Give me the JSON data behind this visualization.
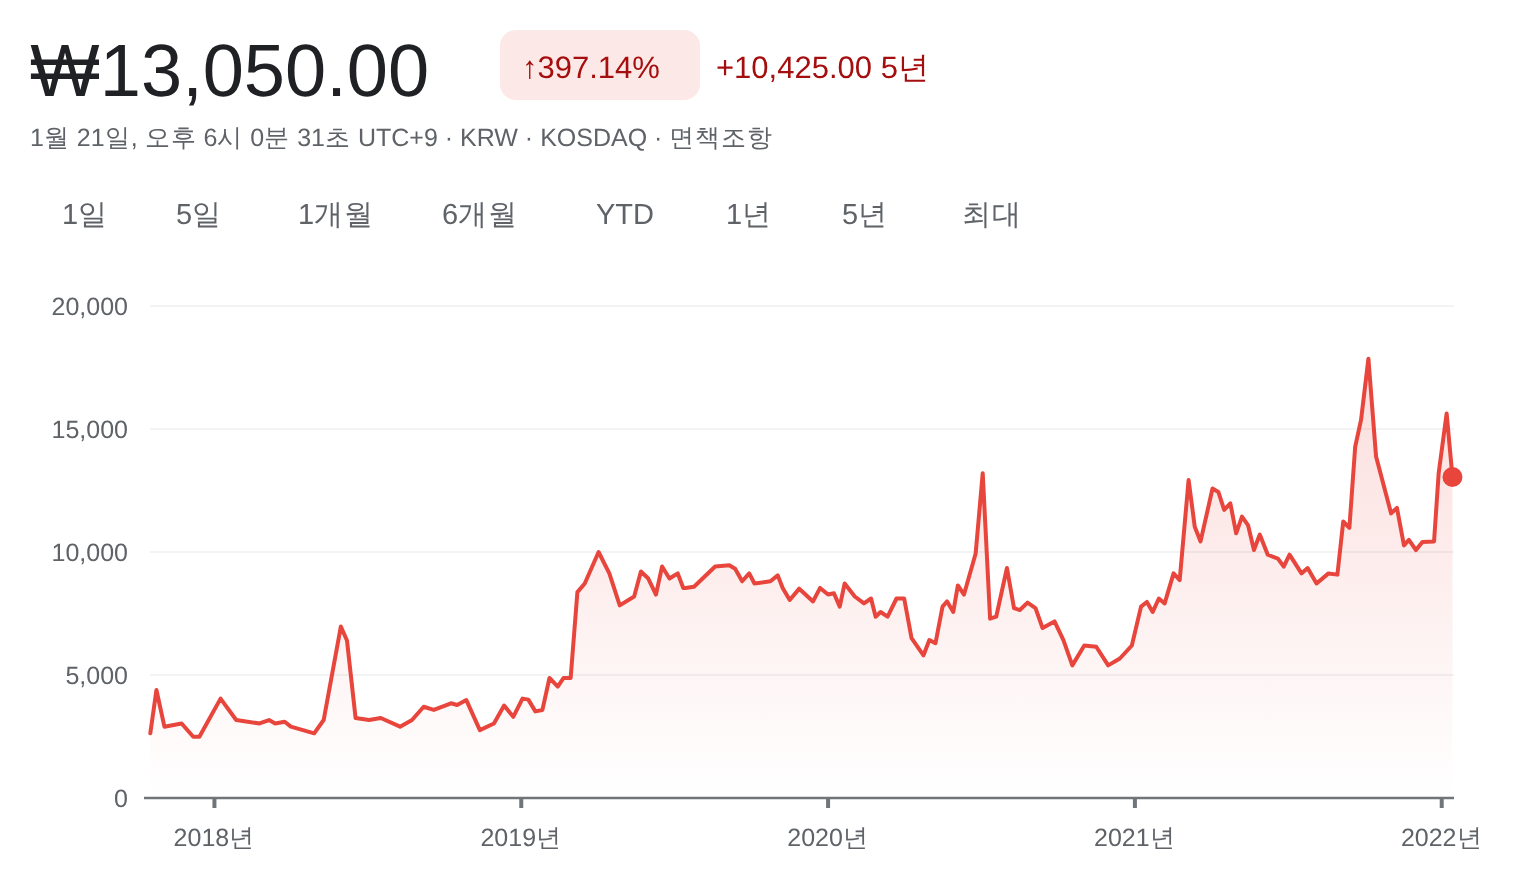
{
  "chart_data": {
    "type": "area",
    "title": "₩13,050.00",
    "subtitle": "1월 21일, 오후 6시 0분 31초 UTC+9 · KRW · KOSDAQ · 면책조항",
    "annotations": [
      "↑397.14%",
      "+10,425.00 5년",
      "1일",
      "5일",
      "1개월",
      "6개월",
      "YTD",
      "1년",
      "5년",
      "최대"
    ],
    "xlim": [
      2017.79,
      2022.04
    ],
    "ylim": [
      0,
      20000
    ],
    "xticks": [
      {
        "value": 2018,
        "label": "2018년"
      },
      {
        "value": 2019,
        "label": "2019년"
      },
      {
        "value": 2020,
        "label": "2020년"
      },
      {
        "value": 2021,
        "label": "2021년"
      },
      {
        "value": 2022,
        "label": "2022년"
      }
    ],
    "yticks": [
      0,
      {
        "value": 5000,
        "label": "5,000"
      },
      {
        "value": 10000,
        "label": "10,000"
      },
      {
        "value": 15000,
        "label": "15,000"
      },
      {
        "value": 20000,
        "label": "20,000"
      }
    ],
    "grid": "y",
    "series": [
      {
        "color": "#e8453c",
        "x": [
          2017.791,
          2017.811,
          2017.837,
          2017.893,
          2017.931,
          2017.951,
          2018.02,
          2018.071,
          2018.147,
          2018.178,
          2018.198,
          2018.229,
          2018.249,
          2018.325,
          2018.356,
          2018.412,
          2018.432,
          2018.46,
          2018.504,
          2018.542,
          2018.605,
          2018.644,
          2018.682,
          2018.715,
          2018.771,
          2018.791,
          2018.821,
          2018.865,
          2018.911,
          2018.944,
          2018.974,
          2019.004,
          2019.023,
          2019.046,
          2019.069,
          2019.092,
          2019.119,
          2019.138,
          2019.161,
          2019.183,
          2019.207,
          2019.252,
          2019.287,
          2019.321,
          2019.368,
          2019.39,
          2019.414,
          2019.439,
          2019.459,
          2019.483,
          2019.51,
          2019.528,
          2019.535,
          2019.563,
          2019.632,
          2019.678,
          2019.697,
          2019.72,
          2019.743,
          2019.76,
          2019.812,
          2019.836,
          2019.852,
          2019.875,
          2019.906,
          2019.951,
          2019.974,
          2020.0,
          2020.019,
          2020.038,
          2020.054,
          2020.087,
          2020.117,
          2020.14,
          2020.155,
          2020.171,
          2020.194,
          2020.223,
          2020.248,
          2020.272,
          2020.311,
          2020.33,
          2020.35,
          2020.373,
          2020.388,
          2020.408,
          2020.423,
          2020.443,
          2020.481,
          2020.504,
          2020.528,
          2020.548,
          2020.583,
          2020.606,
          2020.625,
          2020.65,
          2020.676,
          2020.699,
          2020.738,
          2020.767,
          2020.796,
          2020.835,
          2020.874,
          2020.913,
          2020.951,
          2020.99,
          2021.02,
          2021.039,
          2021.058,
          2021.078,
          2021.097,
          2021.126,
          2021.146,
          2021.175,
          2021.195,
          2021.214,
          2021.253,
          2021.272,
          2021.291,
          2021.311,
          2021.33,
          2021.349,
          2021.369,
          2021.388,
          2021.407,
          2021.433,
          2021.466,
          2021.485,
          2021.504,
          2021.543,
          2021.563,
          2021.592,
          2021.631,
          2021.66,
          2021.679,
          2021.699,
          2021.718,
          2021.737,
          2021.761,
          2021.786,
          2021.835,
          2021.854,
          2021.877,
          2021.893,
          2021.916,
          2021.937,
          2021.975,
          2021.99,
          2022.016,
          2022.035
        ],
        "values": [
          2630,
          4390,
          2900,
          3030,
          2490,
          2490,
          4040,
          3170,
          3030,
          3170,
          3030,
          3100,
          2900,
          2630,
          3170,
          6970,
          6400,
          3250,
          3170,
          3250,
          2900,
          3170,
          3710,
          3580,
          3850,
          3780,
          3980,
          2760,
          3030,
          3760,
          3300,
          4040,
          4000,
          3520,
          3580,
          4880,
          4530,
          4880,
          4880,
          8370,
          8720,
          10000,
          9130,
          7830,
          8190,
          9210,
          8920,
          8270,
          9410,
          8920,
          9130,
          8540,
          8540,
          8590,
          9410,
          9460,
          9320,
          8810,
          9130,
          8720,
          8810,
          9050,
          8540,
          8050,
          8510,
          7990,
          8540,
          8270,
          8320,
          7780,
          8720,
          8190,
          7910,
          8110,
          7370,
          7560,
          7370,
          8110,
          8110,
          6500,
          5800,
          6420,
          6290,
          7780,
          7990,
          7560,
          8640,
          8270,
          9940,
          13200,
          7290,
          7370,
          9350,
          7720,
          7640,
          7940,
          7720,
          6910,
          7180,
          6420,
          5390,
          6200,
          6150,
          5390,
          5670,
          6200,
          7780,
          7970,
          7560,
          8110,
          7910,
          9130,
          8860,
          12930,
          11030,
          10430,
          12580,
          12440,
          11710,
          11980,
          10760,
          11440,
          11080,
          10080,
          10710,
          9890,
          9730,
          9410,
          9890,
          9130,
          9350,
          8720,
          9130,
          9080,
          11240,
          10980,
          14280,
          15370,
          17860,
          13880,
          11570,
          11790,
          10270,
          10490,
          10080,
          10410,
          10430,
          13200,
          15630,
          13050
        ]
      },
      {
        "type": "scatter",
        "color": "#e8453c",
        "x": [
          2022.035
        ],
        "values": [
          13050
        ]
      }
    ]
  }
}
